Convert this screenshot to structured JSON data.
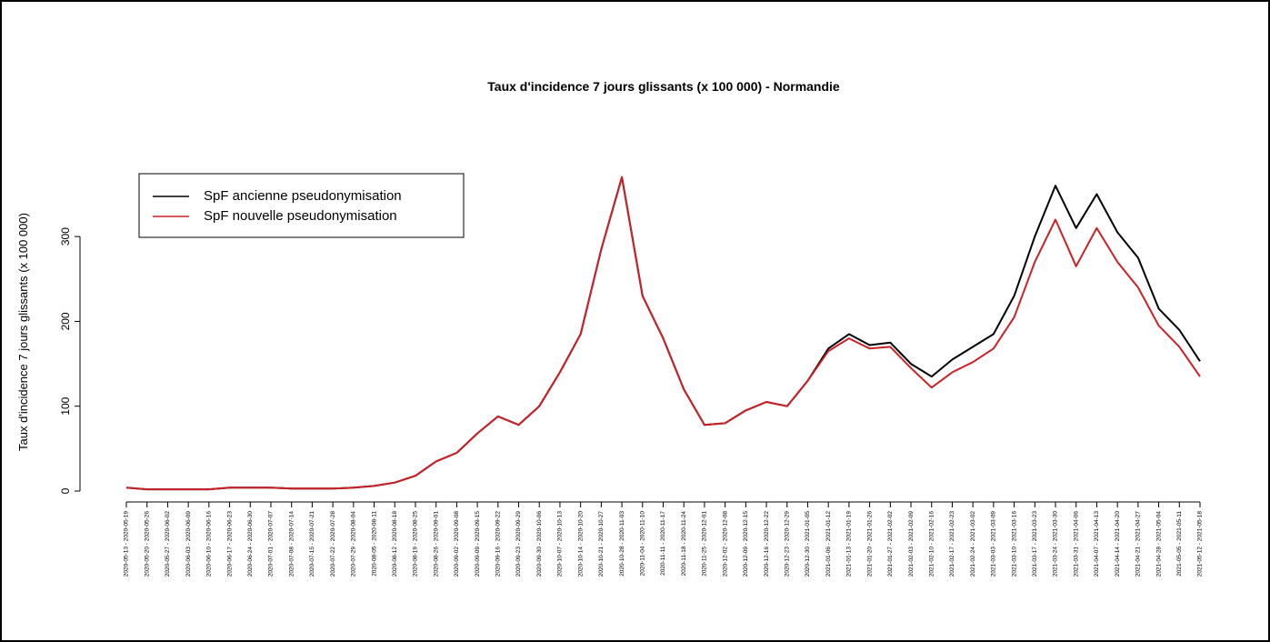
{
  "chart_data": {
    "type": "line",
    "title": "Taux d'incidence 7 jours glissants (x 100 000) - Normandie",
    "y_label": "Taux d'incidence 7 jours glissants (x 100 000)",
    "categories": [
      "2020-05-13 - 2020-05-19",
      "2020-05-20 - 2020-05-26",
      "2020-05-27 - 2020-06-02",
      "2020-06-03 - 2020-06-09",
      "2020-06-10 - 2020-06-16",
      "2020-06-17 - 2020-06-23",
      "2020-06-24 - 2020-06-30",
      "2020-07-01 - 2020-07-07",
      "2020-07-08 - 2020-07-14",
      "2020-07-15 - 2020-07-21",
      "2020-07-22 - 2020-07-28",
      "2020-07-29 - 2020-08-04",
      "2020-08-05 - 2020-08-11",
      "2020-08-12 - 2020-08-18",
      "2020-08-19 - 2020-08-25",
      "2020-08-26 - 2020-09-01",
      "2020-09-02 - 2020-09-08",
      "2020-09-09 - 2020-09-15",
      "2020-09-16 - 2020-09-22",
      "2020-09-23 - 2020-09-29",
      "2020-09-30 - 2020-10-06",
      "2020-10-07 - 2020-10-13",
      "2020-10-14 - 2020-10-20",
      "2020-10-21 - 2020-10-27",
      "2020-10-28 - 2020-11-03",
      "2020-11-04 - 2020-11-10",
      "2020-11-11 - 2020-11-17",
      "2020-11-18 - 2020-11-24",
      "2020-11-25 - 2020-12-01",
      "2020-12-02 - 2020-12-08",
      "2020-12-09 - 2020-12-15",
      "2020-12-16 - 2020-12-22",
      "2020-12-23 - 2020-12-29",
      "2020-12-30 - 2021-01-05",
      "2021-01-06 - 2021-01-12",
      "2021-01-13 - 2021-01-19",
      "2021-01-20 - 2021-01-26",
      "2021-01-27 - 2021-02-02",
      "2021-02-03 - 2021-02-09",
      "2021-02-10 - 2021-02-16",
      "2021-02-17 - 2021-02-23",
      "2021-02-24 - 2021-03-02",
      "2021-03-03 - 2021-03-09",
      "2021-03-10 - 2021-03-16",
      "2021-03-17 - 2021-03-23",
      "2021-03-24 - 2021-03-30",
      "2021-03-31 - 2021-04-06",
      "2021-04-07 - 2021-04-13",
      "2021-04-14 - 2021-04-20",
      "2021-04-21 - 2021-04-27",
      "2021-04-28 - 2021-05-04",
      "2021-05-05 - 2021-05-11",
      "2021-05-12 - 2021-05-18"
    ],
    "series": [
      {
        "name": "SpF ancienne pseudonymisation",
        "color": "#000000",
        "values": [
          4,
          2,
          2,
          2,
          2,
          4,
          4,
          4,
          3,
          3,
          3,
          4,
          6,
          10,
          18,
          35,
          45,
          68,
          88,
          78,
          100,
          140,
          185,
          285,
          370,
          230,
          180,
          120,
          78,
          80,
          95,
          105,
          100,
          130,
          168,
          185,
          172,
          175,
          150,
          135,
          155,
          170,
          185,
          230,
          300,
          360,
          310,
          350,
          305,
          275,
          215,
          190,
          153
        ]
      },
      {
        "name": "SpF nouvelle pseudonymisation",
        "color": "#cc2027",
        "values": [
          4,
          2,
          2,
          2,
          2,
          4,
          4,
          4,
          3,
          3,
          3,
          4,
          6,
          10,
          18,
          35,
          45,
          68,
          88,
          78,
          100,
          140,
          185,
          285,
          370,
          230,
          180,
          120,
          78,
          80,
          95,
          105,
          100,
          130,
          165,
          180,
          168,
          170,
          145,
          122,
          140,
          152,
          168,
          205,
          270,
          320,
          265,
          310,
          270,
          240,
          195,
          170,
          135
        ]
      }
    ],
    "ylim": [
      -15,
      395
    ],
    "yticks": [
      0,
      100,
      200,
      300
    ],
    "legend": "top-left"
  }
}
